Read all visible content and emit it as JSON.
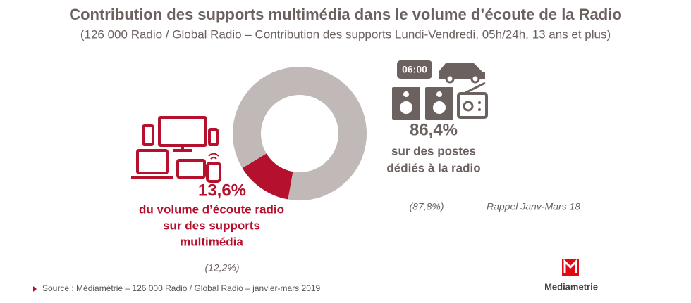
{
  "chart_data": {
    "type": "pie",
    "donut": true,
    "title": "Contribution des supports multimédia dans le volume d’écoute de la Radio",
    "subtitle": "(126 000 Radio / Global Radio – Contribution des supports Lundi-Vendredi, 05h/24h, 13 ans et plus)",
    "values": [
      13.6,
      86.4
    ],
    "value_labels": [
      "13,6%",
      "86,4%"
    ],
    "colors": [
      "#b5112f",
      "#c0b9b8"
    ],
    "descriptions": [
      [
        "du volume d’écoute radio",
        "sur des supports",
        "multimédia"
      ],
      [
        "sur des postes",
        "dédiés à la radio"
      ]
    ],
    "previous_values": [
      12.2,
      87.8
    ],
    "previous_value_labels": [
      "(12,2%)",
      "(87,8%)"
    ],
    "previous_note": "Rappel Janv-Mars 18",
    "clock_display": "06:00",
    "source": "Source : Médiamétrie – 126 000 Radio / Global Radio – janvier-mars 2019",
    "logo": "Mediametrie"
  }
}
